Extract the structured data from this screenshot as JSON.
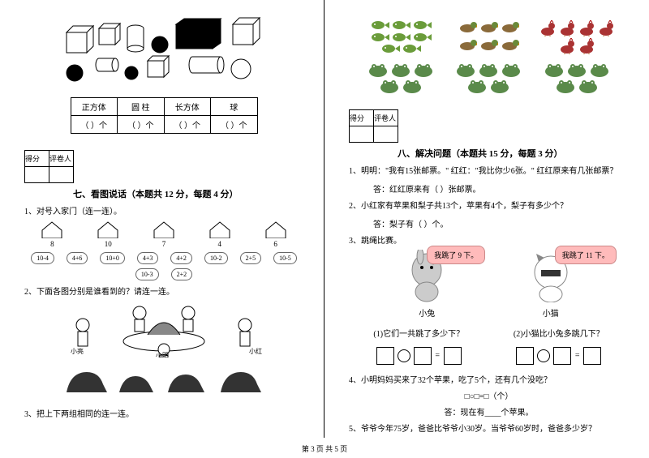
{
  "shapes_table": {
    "headers": [
      "正方体",
      "圆 柱",
      "长方体",
      "球"
    ],
    "row": [
      "（  ）个",
      "（  ）个",
      "（  ）个",
      "（  ）个"
    ]
  },
  "score_label1": "得分",
  "score_label2": "评卷人",
  "section7_title": "七、看图说话（本题共 12 分，每题 4 分）",
  "q7_1": "1、对号入家门（连一连）。",
  "houses": [
    "8",
    "10",
    "7",
    "4",
    "6"
  ],
  "clouds": [
    "10-4",
    "4+6",
    "10+0",
    "4+3",
    "4+2",
    "10-2",
    "2+5",
    "10-5",
    "10-3",
    "2+2"
  ],
  "q7_2": "2、下面各图分别是谁看到的？请连一连。",
  "kids_labels": [
    "小亮",
    "小明",
    "小红"
  ],
  "q7_3": "3、把上下两组相同的连一连。",
  "section8_title": "八、解决问题（本题共 15 分，每题 3 分）",
  "q8_1": "1、明明：\"我有15张邮票。\" 红红：\"我比你少6张。\" 红红原来有几张邮票？",
  "q8_1_ans": "答：红红原来有（   ）张邮票。",
  "q8_2": "2、小红家有苹果和梨子共13个，苹果有4个，梨子有多少个？",
  "q8_2_ans": "答：梨子有（   ）个。",
  "q8_3": "3、跳绳比赛。",
  "bubble1": "我跳了 9 下。",
  "bubble2": "我跳了 11 下。",
  "rabbit1": "小兔",
  "rabbit2": "小猫",
  "q8_3a": "(1)它们一共跳了多少下？",
  "q8_3b": "(2)小猫比小兔多跳几下？",
  "q8_4": "4、小明妈妈买来了32个苹果，吃了5个，还有几个没吃？",
  "q8_4_box": "□○□=□（个）",
  "q8_4_ans": "答：现在有____个苹果。",
  "q8_5": "5、爷爷今年75岁，爸爸比爷爷小30岁。当爷爷60岁时，爸爸多少岁？",
  "footer": "第 3 页 共 5 页",
  "fish_colors": [
    "#6a9c3a",
    "#b88a3a",
    "#3a6a8c"
  ],
  "frog_color": "#5a8a4a"
}
